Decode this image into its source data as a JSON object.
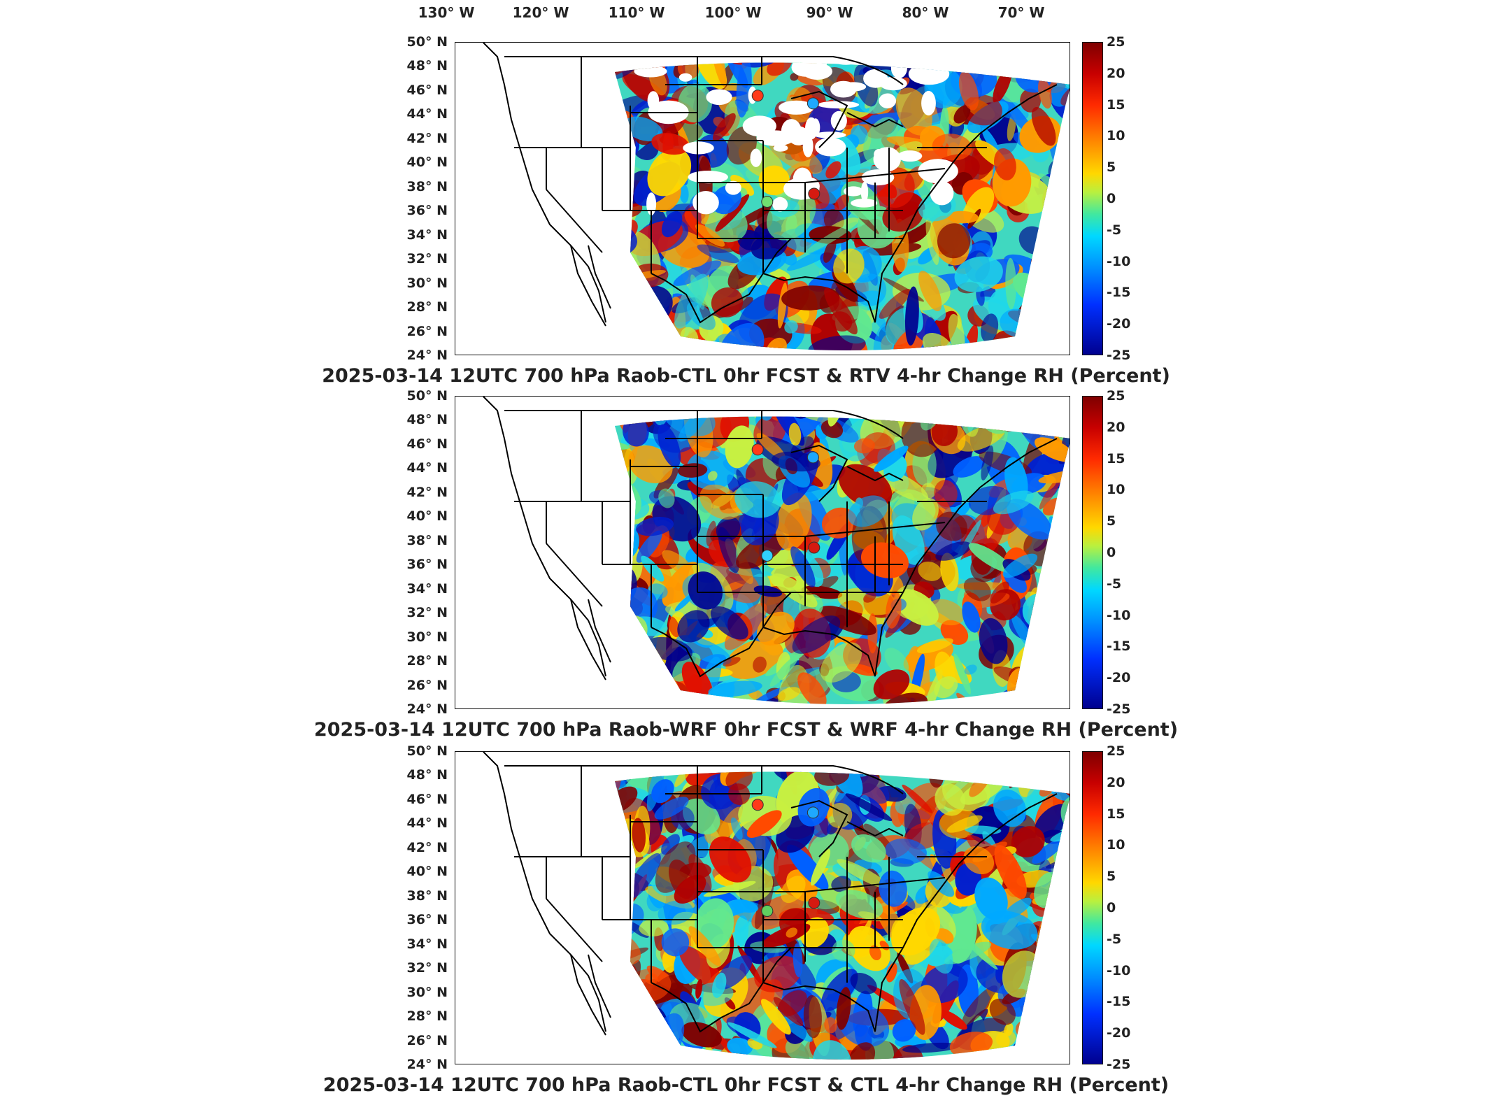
{
  "longitude_labels": [
    "130° W",
    "120° W",
    "110° W",
    "100° W",
    "90° W",
    "80° W",
    "70° W"
  ],
  "latitude_labels": [
    "50° N",
    "48° N",
    "46° N",
    "44° N",
    "42° N",
    "40° N",
    "38° N",
    "36° N",
    "34° N",
    "32° N",
    "30° N",
    "28° N",
    "26° N",
    "24° N"
  ],
  "colorbar": {
    "ticks": [
      "25",
      "20",
      "15",
      "10",
      "5",
      "0",
      "-5",
      "-10",
      "-15",
      "-20",
      "-25"
    ],
    "range": [
      -25,
      25
    ],
    "colors": [
      "#7f0000",
      "#ff2a00",
      "#ffd800",
      "#40e8a0",
      "#00d8ff",
      "#0030ff",
      "#00008f"
    ]
  },
  "panels": [
    {
      "caption": "2025-03-14 12UTC 700 hPa Raob-CTL 0hr FCST & RTV 4-hr Change RH (Percent)",
      "stations": [
        {
          "lon": -97.5,
          "lat": 45.6,
          "color": "#ff3a1a"
        },
        {
          "lon": -91.7,
          "lat": 45.0,
          "color": "#1ea8ff"
        },
        {
          "lon": -91.6,
          "lat": 37.5,
          "color": "#d61a10"
        },
        {
          "lon": -96.5,
          "lat": 36.8,
          "color": "#70e070"
        }
      ]
    },
    {
      "caption": "2025-03-14 12UTC 700 hPa Raob-WRF 0hr FCST & WRF 4-hr Change RH (Percent)",
      "stations": [
        {
          "lon": -97.5,
          "lat": 45.6,
          "color": "#ff3a1a"
        },
        {
          "lon": -91.7,
          "lat": 45.0,
          "color": "#1ea8ff"
        },
        {
          "lon": -91.6,
          "lat": 37.5,
          "color": "#d61a10"
        },
        {
          "lon": -96.5,
          "lat": 36.8,
          "color": "#30d0ff"
        }
      ]
    },
    {
      "caption": "2025-03-14 12UTC 700 hPa Raob-CTL 0hr FCST & CTL 4-hr Change RH (Percent)",
      "stations": [
        {
          "lon": -97.5,
          "lat": 45.6,
          "color": "#ff3a1a"
        },
        {
          "lon": -91.7,
          "lat": 45.0,
          "color": "#1ea8ff"
        },
        {
          "lon": -91.6,
          "lat": 37.5,
          "color": "#d61a10"
        },
        {
          "lon": -96.5,
          "lat": 36.8,
          "color": "#60d060"
        }
      ]
    }
  ]
}
